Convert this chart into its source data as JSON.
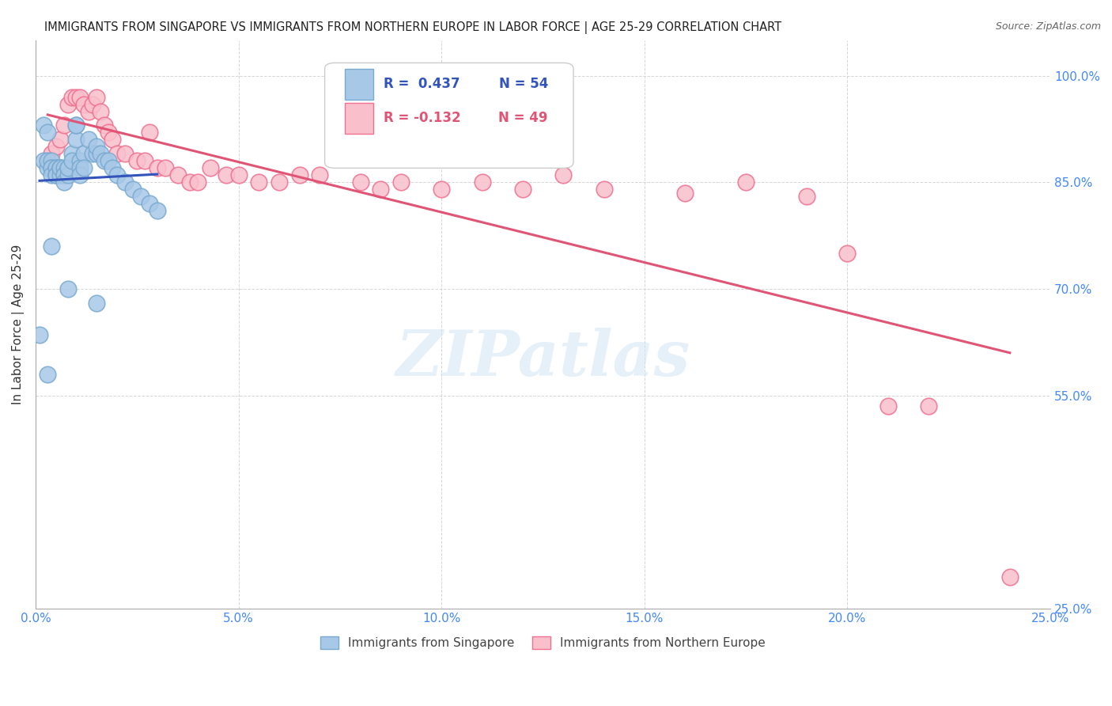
{
  "title": "IMMIGRANTS FROM SINGAPORE VS IMMIGRANTS FROM NORTHERN EUROPE IN LABOR FORCE | AGE 25-29 CORRELATION CHART",
  "source": "Source: ZipAtlas.com",
  "ylabel": "In Labor Force | Age 25-29",
  "xlim": [
    0.0,
    0.25
  ],
  "ylim": [
    0.25,
    1.05
  ],
  "xticks": [
    0.0,
    0.05,
    0.1,
    0.15,
    0.2,
    0.25
  ],
  "yticks": [
    0.25,
    0.55,
    0.7,
    0.85,
    1.0
  ],
  "xticklabels": [
    "0.0%",
    "5.0%",
    "10.0%",
    "15.0%",
    "20.0%",
    "25.0%"
  ],
  "yticklabels": [
    "25.0%",
    "55.0%",
    "70.0%",
    "85.0%",
    "100.0%"
  ],
  "singapore_color": "#a8c8e8",
  "singapore_edge_color": "#7aaacf",
  "northern_europe_color": "#f9c0cc",
  "northern_europe_edge_color": "#f07090",
  "singapore_line_color": "#3355bb",
  "northern_europe_line_color": "#e05575",
  "legend_R_singapore": "R =  0.437",
  "legend_N_singapore": "N = 54",
  "legend_R_northern": "R = -0.132",
  "legend_N_northern": "N = 49",
  "singapore_x": [
    0.001,
    0.002,
    0.002,
    0.003,
    0.003,
    0.003,
    0.004,
    0.004,
    0.004,
    0.004,
    0.005,
    0.005,
    0.005,
    0.005,
    0.005,
    0.006,
    0.006,
    0.006,
    0.006,
    0.007,
    0.007,
    0.007,
    0.007,
    0.008,
    0.008,
    0.008,
    0.009,
    0.009,
    0.01,
    0.01,
    0.01,
    0.011,
    0.011,
    0.011,
    0.012,
    0.012,
    0.013,
    0.014,
    0.015,
    0.015,
    0.016,
    0.017,
    0.018,
    0.019,
    0.02,
    0.022,
    0.024,
    0.026,
    0.028,
    0.03,
    0.003,
    0.004,
    0.008,
    0.015
  ],
  "singapore_y": [
    0.635,
    0.88,
    0.93,
    0.87,
    0.88,
    0.92,
    0.88,
    0.87,
    0.87,
    0.86,
    0.86,
    0.87,
    0.87,
    0.86,
    0.86,
    0.87,
    0.87,
    0.86,
    0.87,
    0.87,
    0.86,
    0.86,
    0.85,
    0.87,
    0.86,
    0.87,
    0.89,
    0.88,
    0.91,
    0.93,
    0.93,
    0.88,
    0.87,
    0.86,
    0.89,
    0.87,
    0.91,
    0.89,
    0.89,
    0.9,
    0.89,
    0.88,
    0.88,
    0.87,
    0.86,
    0.85,
    0.84,
    0.83,
    0.82,
    0.81,
    0.58,
    0.76,
    0.7,
    0.68
  ],
  "northern_europe_x": [
    0.003,
    0.004,
    0.005,
    0.006,
    0.007,
    0.008,
    0.009,
    0.01,
    0.011,
    0.012,
    0.013,
    0.014,
    0.015,
    0.016,
    0.017,
    0.018,
    0.019,
    0.02,
    0.022,
    0.025,
    0.027,
    0.028,
    0.03,
    0.032,
    0.035,
    0.038,
    0.04,
    0.043,
    0.047,
    0.05,
    0.055,
    0.06,
    0.065,
    0.07,
    0.08,
    0.085,
    0.09,
    0.1,
    0.11,
    0.12,
    0.13,
    0.14,
    0.16,
    0.175,
    0.19,
    0.2,
    0.21,
    0.22,
    0.24
  ],
  "northern_europe_y": [
    0.88,
    0.89,
    0.9,
    0.91,
    0.93,
    0.96,
    0.97,
    0.97,
    0.97,
    0.96,
    0.95,
    0.96,
    0.97,
    0.95,
    0.93,
    0.92,
    0.91,
    0.89,
    0.89,
    0.88,
    0.88,
    0.92,
    0.87,
    0.87,
    0.86,
    0.85,
    0.85,
    0.87,
    0.86,
    0.86,
    0.85,
    0.85,
    0.86,
    0.86,
    0.85,
    0.84,
    0.85,
    0.84,
    0.85,
    0.84,
    0.86,
    0.84,
    0.835,
    0.85,
    0.83,
    0.75,
    0.535,
    0.535,
    0.295
  ],
  "watermark_text": "ZIPatlas",
  "background_color": "#ffffff",
  "grid_color": "#cccccc",
  "tick_color": "#4488ff",
  "axis_label_color": "#333333"
}
